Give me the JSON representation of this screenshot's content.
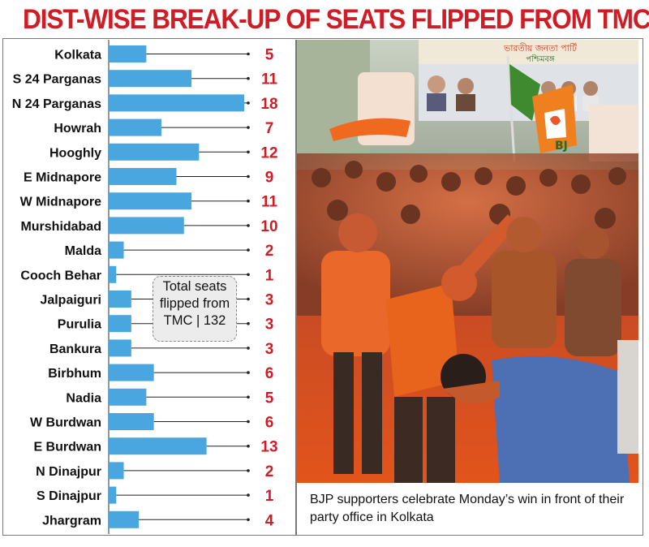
{
  "title": "DIST-WISE BREAK-UP OF SEATS FLIPPED FROM TMC",
  "chart_data": {
    "type": "bar",
    "orientation": "horizontal",
    "title": "DIST-WISE BREAK-UP OF SEATS FLIPPED FROM TMC",
    "categories": [
      "Kolkata",
      "S 24 Parganas",
      "N 24 Parganas",
      "Howrah",
      "Hooghly",
      "E Midnapore",
      "W Midnapore",
      "Murshidabad",
      "Malda",
      "Cooch Behar",
      "Jalpaiguri",
      "Purulia",
      "Bankura",
      "Birbhum",
      "Nadia",
      "W Burdwan",
      "E Burdwan",
      "N Dinajpur",
      "S Dinajpur",
      "Jhargram"
    ],
    "values": [
      5,
      11,
      18,
      7,
      12,
      9,
      11,
      10,
      2,
      1,
      3,
      3,
      3,
      6,
      5,
      6,
      13,
      2,
      1,
      4
    ],
    "xlim": [
      0,
      18
    ],
    "bar_color": "#4aa6df",
    "value_color": "#d01c24"
  },
  "total_box": {
    "line1": "Total seats",
    "line2": "flipped from",
    "line3": "TMC | 132"
  },
  "photo": {
    "banner_text_1": "ভারতীয় জনতা পার্টি",
    "banner_text_2": "পশ্চিমবঙ্গ",
    "flag_text": "BJ"
  },
  "caption": "BJP supporters celebrate Monday’s win in front of their party office in Kolkata"
}
